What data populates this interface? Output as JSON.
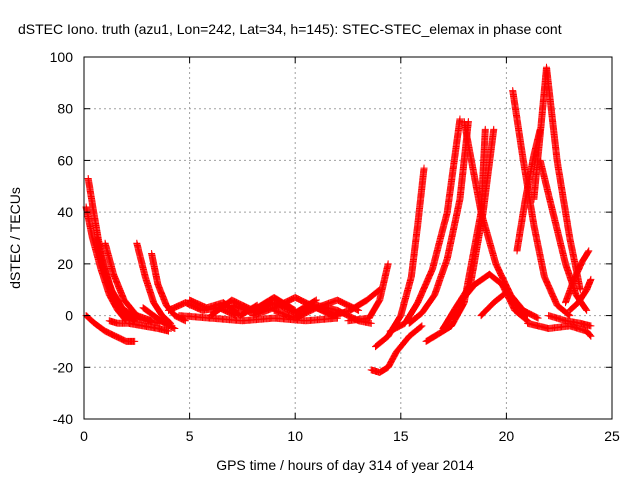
{
  "chart_data": {
    "type": "scatter",
    "title": "dSTEC Iono. truth (azu1, Lon=242, Lat=34, h=145): STEC-STEC_elemax in phase cont",
    "xlabel": "GPS time / hours of day 314 of year 2014",
    "ylabel": "dSTEC  / TECUs",
    "xlim": [
      0,
      25
    ],
    "ylim": [
      -40,
      100
    ],
    "xticks": [
      0,
      5,
      10,
      15,
      20,
      25
    ],
    "yticks": [
      -40,
      -20,
      0,
      20,
      40,
      60,
      80,
      100
    ],
    "xtick_labels": [
      "0",
      "5",
      "10",
      "15",
      "20",
      "25"
    ],
    "ytick_labels": [
      "-40",
      "-20",
      "0",
      "20",
      "40",
      "60",
      "80",
      "100"
    ],
    "grid": true,
    "marker": "plus",
    "color": "#ff0000",
    "series": [
      {
        "x": [
          0.1,
          0.5,
          1.0,
          1.5,
          2.0,
          2.4
        ],
        "y": [
          0,
          -3,
          -6,
          -8,
          -10,
          -10
        ]
      },
      {
        "x": [
          0.2,
          0.5,
          0.8,
          1.2,
          1.6,
          2.0,
          2.4
        ],
        "y": [
          53,
          38,
          24,
          12,
          4,
          0,
          -2
        ]
      },
      {
        "x": [
          0.1,
          0.4,
          0.8,
          1.2,
          1.6,
          2.0
        ],
        "y": [
          42,
          30,
          18,
          8,
          2,
          -2
        ]
      },
      {
        "x": [
          0.6,
          0.9,
          1.3,
          1.8,
          2.4,
          3.0,
          3.6
        ],
        "y": [
          30,
          20,
          10,
          3,
          -1,
          -2,
          -3
        ]
      },
      {
        "x": [
          1.0,
          1.4,
          1.9,
          2.5,
          3.2
        ],
        "y": [
          28,
          16,
          6,
          0,
          -2
        ]
      },
      {
        "x": [
          1.2,
          1.6,
          2.1,
          2.8,
          3.5,
          4.0
        ],
        "y": [
          -2,
          -3,
          -3,
          -4,
          -5,
          -6
        ]
      },
      {
        "x": [
          2.5,
          2.9,
          3.3,
          3.7,
          4.1
        ],
        "y": [
          28,
          15,
          5,
          0,
          -3
        ]
      },
      {
        "x": [
          3.2,
          3.5,
          3.9,
          4.3,
          4.8
        ],
        "y": [
          24,
          12,
          4,
          0,
          -2
        ]
      },
      {
        "x": [
          2.8,
          3.3,
          3.8,
          4.3
        ],
        "y": [
          3,
          0,
          -3,
          -5
        ]
      },
      {
        "x": [
          4.0,
          4.8,
          5.6,
          6.4,
          7.2
        ],
        "y": [
          2,
          5,
          2,
          3,
          0
        ]
      },
      {
        "x": [
          5.0,
          5.8,
          6.6,
          7.4,
          8.2
        ],
        "y": [
          6,
          3,
          5,
          0,
          4
        ]
      },
      {
        "x": [
          6.0,
          7.0,
          8.0,
          9.0,
          10.0
        ],
        "y": [
          0,
          6,
          2,
          7,
          2
        ]
      },
      {
        "x": [
          7.0,
          8.0,
          9.0,
          10.0,
          11.0
        ],
        "y": [
          4,
          1,
          5,
          1,
          6
        ]
      },
      {
        "x": [
          8.0,
          9.0,
          10.0,
          11.0,
          12.0
        ],
        "y": [
          0,
          3,
          7,
          3,
          0
        ]
      },
      {
        "x": [
          9.0,
          10.0,
          11.0,
          12.0,
          13.0
        ],
        "y": [
          2,
          -1,
          3,
          6,
          2
        ]
      },
      {
        "x": [
          10.0,
          11.0,
          12.0,
          13.0,
          13.6
        ],
        "y": [
          1,
          4,
          2,
          -2,
          -3
        ]
      },
      {
        "x": [
          11.0,
          11.8,
          12.6,
          13.4,
          14.0
        ],
        "y": [
          3,
          0,
          2,
          6,
          10
        ]
      },
      {
        "x": [
          4.5,
          6.0,
          7.5,
          9.0,
          10.5,
          12.0
        ],
        "y": [
          0,
          -1,
          -2,
          -1,
          -2,
          -1
        ]
      },
      {
        "x": [
          12.5,
          13.5,
          14.0,
          14.4
        ],
        "y": [
          -2,
          -1,
          6,
          20
        ]
      },
      {
        "x": [
          13.6,
          14.0,
          14.4,
          14.8,
          15.4,
          16.0
        ],
        "y": [
          -21,
          -22,
          -20,
          -14,
          -8,
          -4
        ]
      },
      {
        "x": [
          13.8,
          14.4,
          15.0,
          15.5,
          15.8,
          16.1
        ],
        "y": [
          -12,
          -8,
          0,
          15,
          35,
          57
        ]
      },
      {
        "x": [
          14.5,
          15.2,
          15.8,
          16.5,
          17.2,
          17.8
        ],
        "y": [
          -6,
          -3,
          5,
          18,
          40,
          76
        ]
      },
      {
        "x": [
          15.4,
          16.0,
          16.6,
          17.2,
          17.8,
          18.2
        ],
        "y": [
          -3,
          1,
          8,
          22,
          45,
          75
        ]
      },
      {
        "x": [
          16.2,
          16.8,
          17.4,
          18.0,
          18.8,
          19.0
        ],
        "y": [
          -10,
          -7,
          -4,
          5,
          40,
          72
        ]
      },
      {
        "x": [
          17.0,
          17.6,
          18.3,
          18.9,
          19.4
        ],
        "y": [
          -5,
          3,
          12,
          40,
          72
        ]
      },
      {
        "x": [
          17.8,
          18.5,
          19.2,
          19.8,
          20.4,
          21.0
        ],
        "y": [
          5,
          12,
          16,
          12,
          2,
          -2
        ]
      },
      {
        "x": [
          18.8,
          19.4,
          20.0,
          20.5,
          21.0
        ],
        "y": [
          0,
          5,
          9,
          4,
          0
        ]
      },
      {
        "x": [
          18.0,
          18.8,
          19.5,
          20.2,
          20.8,
          21.5
        ],
        "y": [
          75,
          40,
          20,
          8,
          2,
          -1
        ]
      },
      {
        "x": [
          20.3,
          20.8,
          21.3,
          21.8,
          22.4,
          23.0
        ],
        "y": [
          87,
          60,
          35,
          15,
          4,
          0
        ]
      },
      {
        "x": [
          20.5,
          20.9,
          21.3,
          21.6
        ],
        "y": [
          25,
          45,
          62,
          72
        ]
      },
      {
        "x": [
          21.3,
          21.6,
          21.9,
          22.4,
          23.0,
          23.5
        ],
        "y": [
          45,
          70,
          96,
          60,
          30,
          10
        ]
      },
      {
        "x": [
          21.6,
          22.2,
          22.8,
          23.3,
          23.8
        ],
        "y": [
          60,
          40,
          20,
          8,
          2
        ]
      },
      {
        "x": [
          22.8,
          23.2,
          23.6,
          23.9
        ],
        "y": [
          5,
          14,
          21,
          25
        ]
      },
      {
        "x": [
          23.0,
          23.4,
          23.8,
          24.0
        ],
        "y": [
          2,
          5,
          10,
          14
        ]
      },
      {
        "x": [
          21.0,
          22.0,
          23.0,
          23.8,
          24.0
        ],
        "y": [
          -3,
          -5,
          -4,
          -6,
          -8
        ]
      },
      {
        "x": [
          22.0,
          22.8,
          23.5,
          24.0
        ],
        "y": [
          0,
          -2,
          -3,
          -4
        ]
      }
    ]
  }
}
